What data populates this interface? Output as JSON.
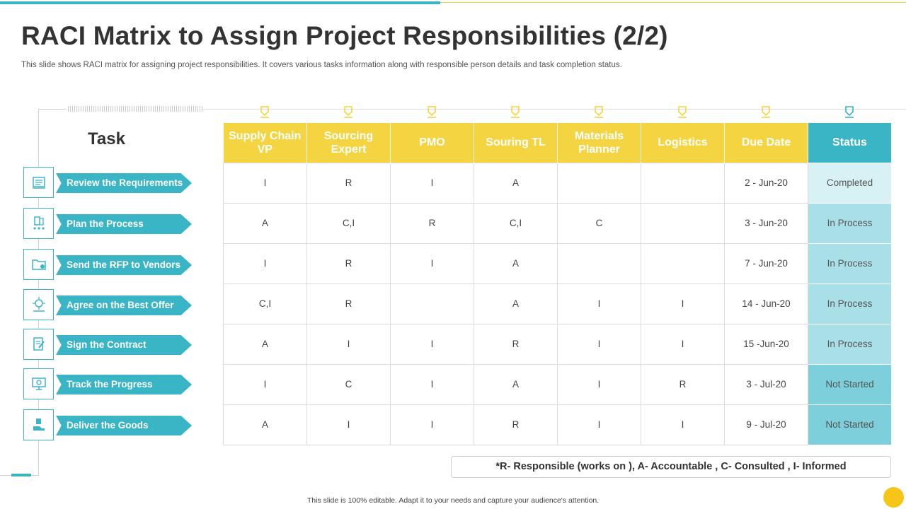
{
  "title": "RACI Matrix to Assign Project Responsibilities (2/2)",
  "subtitle": "This slide shows RACI matrix for  assigning project responsibilities. It covers various tasks information along with responsible person details and task completion status.",
  "task_heading": "Task",
  "tasks": [
    {
      "label": "Review the Requirements",
      "icon": "checklist-icon"
    },
    {
      "label": "Plan the Process",
      "icon": "planning-icon"
    },
    {
      "label": "Send the RFP to Vendors",
      "icon": "folder-send-icon"
    },
    {
      "label": "Agree on the Best Offer",
      "icon": "handshake-offer-icon"
    },
    {
      "label": "Sign the Contract",
      "icon": "contract-sign-icon"
    },
    {
      "label": "Track the Progress",
      "icon": "monitor-progress-icon"
    },
    {
      "label": "Deliver the Goods",
      "icon": "delivery-icon"
    }
  ],
  "columns": [
    "Supply Chain VP",
    "Sourcing Expert",
    "PMO",
    "Souring TL",
    "Materials Planner",
    "Logistics",
    "Due Date",
    "Status"
  ],
  "rows": [
    [
      "I",
      "R",
      "I",
      "A",
      "",
      "",
      "2 - Jun-20",
      "Completed"
    ],
    [
      "A",
      "C,I",
      "R",
      "C,I",
      "C",
      "",
      "3 - Jun-20",
      "In Process"
    ],
    [
      "I",
      "R",
      "I",
      "A",
      "",
      "",
      "7 - Jun-20",
      "In Process"
    ],
    [
      "C,I",
      "R",
      "",
      "A",
      "I",
      "I",
      "14 - Jun-20",
      "In Process"
    ],
    [
      "A",
      "I",
      "I",
      "R",
      "I",
      "I",
      "15 -Jun-20",
      "In Process"
    ],
    [
      "I",
      "C",
      "I",
      "A",
      "I",
      "R",
      "3 - Jul-20",
      "Not Started"
    ],
    [
      "A",
      "I",
      "I",
      "R",
      "I",
      "I",
      "9  - Jul-20",
      "Not Started"
    ]
  ],
  "status_colors": {
    "Completed": "#d7f1f4",
    "In Process": "#a9e0e8",
    "Not Started": "#7ccfdb"
  },
  "colors": {
    "accent_teal": "#3ab5c6",
    "accent_yellow": "#f5d442"
  },
  "legend": "*R- Responsible (works on ),  A- Accountable ,  C- Consulted ,  I- Informed",
  "footer": "This slide is 100% editable.  Adapt it to your needs and capture your audience's attention."
}
